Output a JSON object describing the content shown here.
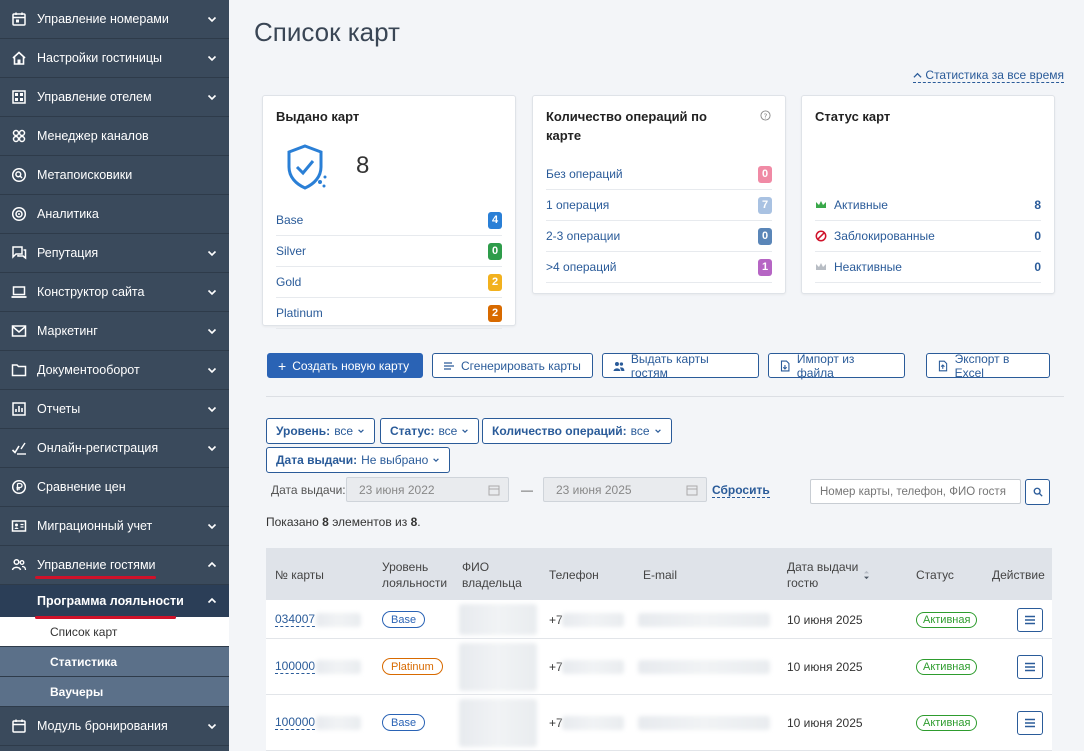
{
  "sidebar": {
    "items": [
      {
        "label": "Управление номерами",
        "icon": "calendar-icon",
        "chevron": "down"
      },
      {
        "label": "Настройки гостиницы",
        "icon": "home-icon",
        "chevron": "down"
      },
      {
        "label": "Управление отелем",
        "icon": "grid-icon",
        "chevron": "down"
      },
      {
        "label": "Менеджер каналов",
        "icon": "cog-cluster-icon",
        "chevron": ""
      },
      {
        "label": "Метапоисковики",
        "icon": "search-circle-icon",
        "chevron": ""
      },
      {
        "label": "Аналитика",
        "icon": "target-icon",
        "chevron": ""
      },
      {
        "label": "Репутация",
        "icon": "chat-icon",
        "chevron": "down"
      },
      {
        "label": "Конструктор сайта",
        "icon": "laptop-icon",
        "chevron": "down"
      },
      {
        "label": "Маркетинг",
        "icon": "mail-icon",
        "chevron": "down"
      },
      {
        "label": "Документооборот",
        "icon": "folder-icon",
        "chevron": "down"
      },
      {
        "label": "Отчеты",
        "icon": "bar-chart-icon",
        "chevron": "down"
      },
      {
        "label": "Онлайн-регистрация",
        "icon": "signature-icon",
        "chevron": "down"
      },
      {
        "label": "Сравнение цен",
        "icon": "coin-icon",
        "chevron": ""
      },
      {
        "label": "Миграционный учет",
        "icon": "id-card-icon",
        "chevron": "down"
      },
      {
        "label": "Управление гостями",
        "icon": "users-icon",
        "chevron": "up"
      }
    ],
    "sub": {
      "label": "Программа лояльности"
    },
    "leaves": [
      {
        "label": "Список карт"
      },
      {
        "label": "Статистика"
      },
      {
        "label": "Ваучеры"
      }
    ],
    "bottom": {
      "label": "Модуль бронирования",
      "icon": "booking-icon"
    }
  },
  "page": {
    "title": "Список карт",
    "stats_link": "Статистика за все время"
  },
  "card_issued": {
    "title": "Выдано карт",
    "total": "8",
    "rows": [
      {
        "label": "Base",
        "value": "4",
        "color": "#2a7fd6"
      },
      {
        "label": "Silver",
        "value": "0",
        "color": "#2e9c4a"
      },
      {
        "label": "Gold",
        "value": "2",
        "color": "#f2b11e"
      },
      {
        "label": "Platinum",
        "value": "2",
        "color": "#d86a00"
      }
    ]
  },
  "card_ops": {
    "title": "Количество операций по карте",
    "rows": [
      {
        "label": "Без операций",
        "value": "0",
        "color": "#f08aa5"
      },
      {
        "label": "1 операция",
        "value": "7",
        "color": "#a9c2e2"
      },
      {
        "label": "2-3 операции",
        "value": "0",
        "color": "#5a86b8"
      },
      {
        "label": ">4 операций",
        "value": "1",
        "color": "#b665c4"
      }
    ]
  },
  "card_status": {
    "title": "Статус карт",
    "rows": [
      {
        "label": "Активные",
        "value": "8",
        "icon": "crown-green-icon"
      },
      {
        "label": "Заблокированные",
        "value": "0",
        "icon": "blocked-icon"
      },
      {
        "label": "Неактивные",
        "value": "0",
        "icon": "crown-gray-icon"
      }
    ]
  },
  "toolbar": {
    "create": "Создать новую карту",
    "generate": "Сгенерировать карты",
    "issue": "Выдать карты гостям",
    "import": "Импорт из файла",
    "export": "Экспорт в Excel"
  },
  "filters": {
    "level_label": "Уровень:",
    "level_value": "все",
    "status_label": "Статус:",
    "status_value": "все",
    "ops_label": "Количество операций:",
    "ops_value": "все",
    "date_label": "Дата выдачи:",
    "date_value": "Не выбрано",
    "date_range_label": "Дата выдачи:",
    "date_from": "23 июня 2022",
    "date_to": "23 июня 2025",
    "reset": "Сбросить",
    "search_placeholder": "Номер карты, телефон, ФИО гостя"
  },
  "shown": {
    "prefix": "Показано ",
    "count": "8",
    "mid": " элементов из ",
    "total": "8",
    "suffix": "."
  },
  "table": {
    "headers": {
      "card_no": "№ карты",
      "level": "Уровень лояльности",
      "owner": "ФИО владельца",
      "phone": "Телефон",
      "email": "E-mail",
      "issued": "Дата выдачи гостю",
      "status": "Статус",
      "action": "Действие"
    },
    "rows": [
      {
        "card_no": "034007",
        "level": "Base",
        "phone": "+7",
        "issued": "10 июня 2025",
        "status": "Активная"
      },
      {
        "card_no": "100000",
        "level": "Platinum",
        "phone": "+7",
        "issued": "10 июня 2025",
        "status": "Активная"
      },
      {
        "card_no": "100000",
        "level": "Base",
        "phone": "+7",
        "issued": "10 июня 2025",
        "status": "Активная"
      }
    ]
  }
}
